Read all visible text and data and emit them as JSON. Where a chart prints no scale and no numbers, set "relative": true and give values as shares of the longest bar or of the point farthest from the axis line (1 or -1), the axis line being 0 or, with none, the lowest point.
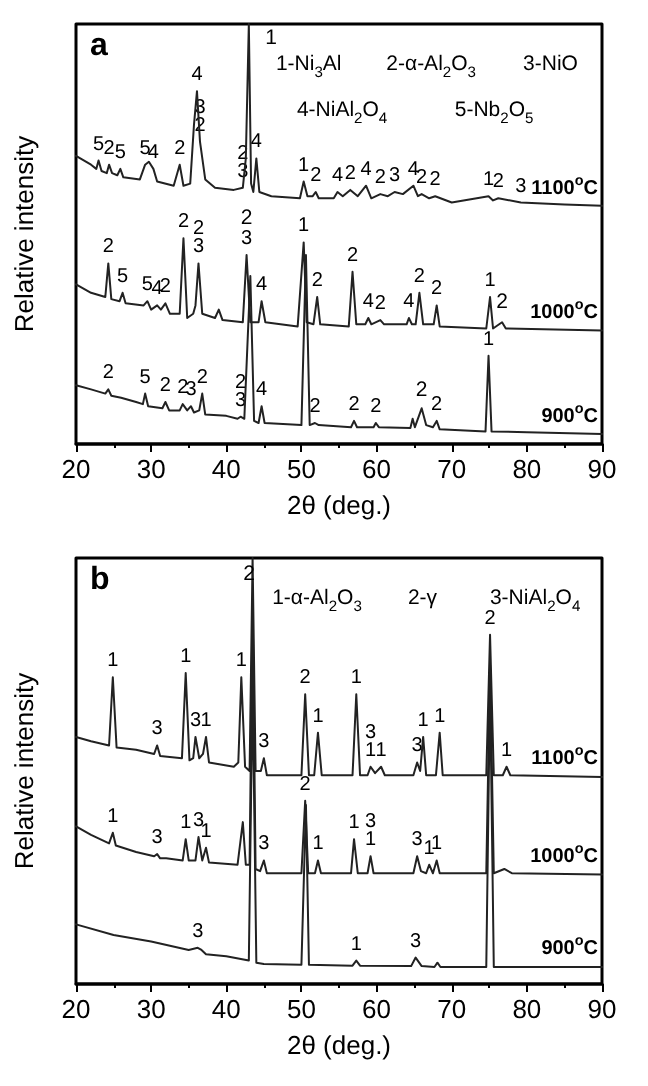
{
  "chart_data": [
    {
      "type": "line",
      "title": "a",
      "xlabel": "2θ (deg.)",
      "ylabel": "Relative intensity",
      "relative": true,
      "marker": "none",
      "xlim": [
        20,
        90
      ],
      "xticks": [
        20,
        30,
        40,
        50,
        60,
        70,
        80,
        90
      ],
      "series": [
        {
          "name": "1100$^{o}$C",
          "color": "#222222",
          "x": [
            20,
            22,
            22.7,
            23.0,
            23.4,
            24.1,
            24.4,
            24.8,
            25.5,
            25.9,
            26.3,
            28.5,
            29.2,
            29.7,
            30.3,
            30.8,
            33,
            33.8,
            34.3,
            35.2,
            35.7,
            36.1,
            36.5,
            37.2,
            38.5,
            41,
            42.2,
            42.6,
            43,
            43.3,
            43.6,
            44.0,
            44.4,
            46,
            49.8,
            50.3,
            50.8,
            51.5,
            51.9,
            52.3,
            54.3,
            54.8,
            55.5,
            56.5,
            57.5,
            58.6,
            59.3,
            60.5,
            61.5,
            62.4,
            63.5,
            64.9,
            65.5,
            66,
            67,
            67.8,
            70,
            74.9,
            75.5,
            76.2,
            79.2,
            85,
            90
          ],
          "values": [
            0.686,
            0.665,
            0.655,
            0.675,
            0.65,
            0.645,
            0.665,
            0.645,
            0.64,
            0.655,
            0.635,
            0.63,
            0.665,
            0.672,
            0.655,
            0.625,
            0.615,
            0.665,
            0.615,
            0.62,
            0.76,
            0.84,
            0.72,
            0.63,
            0.61,
            0.605,
            0.61,
            0.68,
            1,
            0.62,
            0.6,
            0.68,
            0.6,
            0.59,
            0.585,
            0.625,
            0.59,
            0.59,
            0.6,
            0.585,
            0.585,
            0.6,
            0.59,
            0.605,
            0.59,
            0.615,
            0.585,
            0.595,
            0.59,
            0.6,
            0.595,
            0.615,
            0.59,
            0.595,
            0.585,
            0.59,
            0.575,
            0.59,
            0.58,
            0.585,
            0.575,
            0.57,
            0.567
          ]
        },
        {
          "name": "1000$^{o}$C",
          "color": "#222222",
          "x": [
            20,
            22,
            23.9,
            24.3,
            24.7,
            25.8,
            26.2,
            26.6,
            29,
            29.5,
            30,
            30.8,
            31.3,
            31.9,
            32.5,
            33.8,
            34.3,
            34.8,
            35.6,
            35.9,
            36.3,
            36.8,
            38.5,
            39,
            39.5,
            42.2,
            42.7,
            43.2,
            44.3,
            44.7,
            45.2,
            49.5,
            50.3,
            50.7,
            51.6,
            52.1,
            52.5,
            56.3,
            56.8,
            57.3,
            58.5,
            58.9,
            59.3,
            60.5,
            61,
            64,
            64.3,
            64.7,
            65.2,
            65.7,
            66.2,
            67.6,
            68,
            68.4,
            74.6,
            75.1,
            75.5,
            76.7,
            77.2,
            90
          ],
          "values": [
            0.38,
            0.36,
            0.35,
            0.43,
            0.345,
            0.34,
            0.36,
            0.335,
            0.33,
            0.34,
            0.32,
            0.33,
            0.32,
            0.335,
            0.31,
            0.31,
            0.49,
            0.3,
            0.31,
            0.33,
            0.43,
            0.31,
            0.3,
            0.32,
            0.295,
            0.29,
            0.45,
            0.29,
            0.29,
            0.34,
            0.29,
            0.28,
            0.48,
            0.29,
            0.285,
            0.35,
            0.285,
            0.28,
            0.41,
            0.285,
            0.285,
            0.3,
            0.285,
            0.295,
            0.285,
            0.285,
            0.3,
            0.285,
            0.285,
            0.36,
            0.285,
            0.285,
            0.33,
            0.28,
            0.275,
            0.35,
            0.275,
            0.29,
            0.275,
            0.27
          ]
        },
        {
          "name": "900$^{o}$C",
          "color": "#222222",
          "x": [
            20,
            22,
            23.9,
            24.3,
            24.7,
            26,
            28,
            28.9,
            29.2,
            29.6,
            31.5,
            31.9,
            32.4,
            33.8,
            34.2,
            34.8,
            35.3,
            35.7,
            36.4,
            36.8,
            37.2,
            40,
            41.5,
            41.9,
            42.4,
            43.2,
            43.7,
            44.3,
            44.7,
            45.1,
            50,
            50.6,
            51.1,
            51.8,
            52.3,
            56.6,
            57,
            57.4,
            59.6,
            59.9,
            60.3,
            64.5,
            64.8,
            65.1,
            66.0,
            66.6,
            67.5,
            68.0,
            68.4,
            74.5,
            74.9,
            75.3,
            80,
            90
          ],
          "values": [
            0.14,
            0.13,
            0.12,
            0.13,
            0.115,
            0.11,
            0.1,
            0.095,
            0.12,
            0.09,
            0.085,
            0.1,
            0.08,
            0.08,
            0.095,
            0.08,
            0.09,
            0.075,
            0.08,
            0.12,
            0.07,
            0.067,
            0.06,
            0.065,
            0.06,
            0.4,
            0.055,
            0.05,
            0.09,
            0.05,
            0.045,
            0.45,
            0.045,
            0.05,
            0.045,
            0.04,
            0.055,
            0.04,
            0.04,
            0.05,
            0.04,
            0.038,
            0.06,
            0.04,
            0.085,
            0.045,
            0.04,
            0.055,
            0.035,
            0.03,
            0.21,
            0.03,
            0.028,
            0.024
          ]
        }
      ],
      "annotations": [
        "1-Ni$_{3}$Al",
        "2-α-Al$_{2}$O$_{3}$",
        "3-NiO",
        "4-NiAl$_{2}$O$_{4}$",
        "5-Nb$_{2}$O$_{5}$",
        "1",
        "2",
        "2",
        "2",
        {
          "text": "5",
          "x": 23.0,
          "y": 0.675
        },
        {
          "text": "2",
          "x": 24.4,
          "y": 0.665
        },
        {
          "text": "5",
          "x": 25.9,
          "y": 0.655
        },
        {
          "text": "5",
          "x": 29.2,
          "y": 0.665
        },
        {
          "text": "4",
          "x": 30.3,
          "y": 0.655
        },
        {
          "text": "2",
          "x": 33.8,
          "y": 0.665
        },
        {
          "text": "4",
          "x": 36.1,
          "y": 0.84
        },
        {
          "text": "3",
          "x": 36.5,
          "y": 0.72
        },
        {
          "text": "2",
          "x": 36.5,
          "y": 0.72
        },
        {
          "text": "2",
          "x": 42.2,
          "y": 0.61
        },
        {
          "text": "3",
          "x": 42.2,
          "y": 0.61
        },
        {
          "text": "4",
          "x": 44.0,
          "y": 0.68
        },
        {
          "text": "1",
          "x": 50.3,
          "y": 0.625
        },
        {
          "text": "2",
          "x": 51.9,
          "y": 0.6
        },
        {
          "text": "4",
          "x": 54.8,
          "y": 0.6
        },
        {
          "text": "2",
          "x": 56.5,
          "y": 0.605
        },
        {
          "text": "4",
          "x": 58.6,
          "y": 0.615
        },
        {
          "text": "2",
          "x": 60.5,
          "y": 0.595
        },
        {
          "text": "3",
          "x": 62.4,
          "y": 0.6
        },
        {
          "text": "4",
          "x": 64.9,
          "y": 0.615
        },
        {
          "text": "2",
          "x": 66,
          "y": 0.595
        },
        {
          "text": "2",
          "x": 67.8,
          "y": 0.59
        },
        {
          "text": "1",
          "x": 74.9,
          "y": 0.59
        },
        {
          "text": "2",
          "x": 76.2,
          "y": 0.585
        },
        {
          "text": "3",
          "x": 79.2,
          "y": 0.575
        },
        {
          "text": "2",
          "x": 24.3,
          "y": 0.43
        },
        {
          "text": "5",
          "x": 26.2,
          "y": 0.36
        },
        {
          "text": "5",
          "x": 29.5,
          "y": 0.34
        },
        {
          "text": "4",
          "x": 30.8,
          "y": 0.33
        },
        {
          "text": "2",
          "x": 31.9,
          "y": 0.335
        },
        {
          "text": "2",
          "x": 34.3,
          "y": 0.49
        },
        {
          "text": "2",
          "x": 36.3,
          "y": 0.43
        },
        {
          "text": "3",
          "x": 36.3,
          "y": 0.43
        },
        {
          "text": "3",
          "x": 42.7,
          "y": 0.45
        },
        {
          "text": "4",
          "x": 44.7,
          "y": 0.34
        },
        {
          "text": "1",
          "x": 50.3,
          "y": 0.48
        },
        {
          "text": "2",
          "x": 52.1,
          "y": 0.35
        },
        {
          "text": "2",
          "x": 56.8,
          "y": 0.41
        },
        {
          "text": "4",
          "x": 58.9,
          "y": 0.3
        },
        {
          "text": "2",
          "x": 60.5,
          "y": 0.295
        },
        {
          "text": "4",
          "x": 64.3,
          "y": 0.3
        },
        {
          "text": "2",
          "x": 65.7,
          "y": 0.36
        },
        {
          "text": "2",
          "x": 68,
          "y": 0.33
        },
        {
          "text": "1",
          "x": 75.1,
          "y": 0.35
        },
        {
          "text": "2",
          "x": 24.3,
          "y": 0.13
        },
        {
          "text": "5",
          "x": 29.2,
          "y": 0.12
        },
        {
          "text": "2",
          "x": 31.9,
          "y": 0.1
        },
        {
          "text": "2",
          "x": 34.2,
          "y": 0.095
        },
        {
          "text": "3",
          "x": 35.3,
          "y": 0.09
        },
        {
          "text": "2",
          "x": 36.8,
          "y": 0.12
        },
        {
          "text": "2",
          "x": 41.9,
          "y": 0.065
        },
        {
          "text": "3",
          "x": 41.9,
          "y": 0.065
        },
        {
          "text": "4",
          "x": 44.7,
          "y": 0.09
        },
        {
          "text": "2",
          "x": 51.8,
          "y": 0.05
        },
        {
          "text": "2",
          "x": 57,
          "y": 0.055
        },
        {
          "text": "2",
          "x": 59.9,
          "y": 0.05
        },
        {
          "text": "2",
          "x": 68.0,
          "y": 0.055
        },
        {
          "text": "1",
          "x": 74.9,
          "y": 0.21
        }
      ]
    },
    {
      "type": "line",
      "title": "b",
      "xlabel": "2θ (deg.)",
      "ylabel": "Relative intensity",
      "relative": true,
      "marker": "none",
      "xlim": [
        20,
        90
      ],
      "xticks": [
        20,
        30,
        40,
        50,
        60,
        70,
        80,
        90
      ],
      "series": [
        {
          "name": "1100$^{o}$C",
          "color": "#222222",
          "x": [
            20,
            22,
            24.4,
            24.9,
            25.4,
            28,
            30.4,
            30.8,
            31.2,
            34.1,
            34.6,
            35.1,
            35.6,
            35.9,
            36.4,
            36.9,
            37.3,
            37.7,
            41,
            41.6,
            42.0,
            42.5,
            43.1,
            43.5,
            43.9,
            44.6,
            45.0,
            45.4,
            50,
            50.5,
            51,
            51.7,
            52.2,
            52.7,
            56.8,
            57.3,
            57.8,
            58.8,
            59.2,
            59.8,
            60.6,
            61.1,
            64.9,
            65.4,
            65.8,
            66.2,
            66.6,
            67.9,
            68.4,
            68.8,
            74.6,
            75.1,
            75.6,
            76.8,
            77.3,
            77.8,
            90
          ],
          "values": [
            0.58,
            0.57,
            0.56,
            0.72,
            0.555,
            0.55,
            0.54,
            0.56,
            0.535,
            0.53,
            0.73,
            0.525,
            0.53,
            0.58,
            0.53,
            0.54,
            0.58,
            0.52,
            0.51,
            0.52,
            0.72,
            0.51,
            0.5,
            1,
            0.5,
            0.5,
            0.53,
            0.49,
            0.49,
            0.68,
            0.49,
            0.49,
            0.59,
            0.49,
            0.49,
            0.68,
            0.49,
            0.49,
            0.51,
            0.495,
            0.51,
            0.49,
            0.49,
            0.52,
            0.5,
            0.58,
            0.49,
            0.49,
            0.59,
            0.49,
            0.49,
            0.82,
            0.49,
            0.49,
            0.51,
            0.49,
            0.486
          ]
        },
        {
          "name": "1000$^{o}$C",
          "color": "#222222",
          "x": [
            20,
            22,
            24.4,
            24.9,
            25.3,
            28,
            30.4,
            30.8,
            31.2,
            32,
            34.2,
            34.6,
            35,
            35.9,
            36.3,
            36.8,
            37.3,
            37.7,
            41.5,
            42.2,
            42.6,
            43.1,
            43.5,
            43.9,
            44.5,
            45.0,
            45.4,
            50,
            50.5,
            50.9,
            51.8,
            52.2,
            52.6,
            56.6,
            57,
            57.5,
            58.8,
            59.2,
            59.6,
            64.9,
            65.4,
            65.9,
            66.6,
            67,
            67.5,
            68,
            68.4,
            74.6,
            75.1,
            75.6,
            77,
            78,
            90
          ],
          "values": [
            0.37,
            0.35,
            0.33,
            0.355,
            0.325,
            0.31,
            0.3,
            0.305,
            0.295,
            0.295,
            0.29,
            0.34,
            0.29,
            0.29,
            0.345,
            0.29,
            0.32,
            0.285,
            0.28,
            0.38,
            0.28,
            0.28,
            0.9,
            0.27,
            0.265,
            0.29,
            0.26,
            0.26,
            0.43,
            0.26,
            0.26,
            0.29,
            0.26,
            0.26,
            0.34,
            0.26,
            0.26,
            0.3,
            0.26,
            0.26,
            0.3,
            0.265,
            0.26,
            0.28,
            0.26,
            0.29,
            0.26,
            0.26,
            0.75,
            0.26,
            0.27,
            0.26,
            0.257
          ]
        },
        {
          "name": "900$^{o}$C",
          "color": "#222222",
          "x": [
            20,
            25,
            30,
            35,
            36.2,
            36.7,
            37.3,
            40,
            43,
            43.5,
            44,
            45,
            50,
            50.6,
            51,
            56.8,
            57.3,
            57.8,
            64.6,
            65.2,
            66,
            67.7,
            68.1,
            68.5,
            74.6,
            75.1,
            75.6,
            80,
            90
          ],
          "values": [
            0.14,
            0.115,
            0.1,
            0.08,
            0.085,
            0.08,
            0.07,
            0.065,
            0.055,
            0.7,
            0.05,
            0.047,
            0.045,
            0.42,
            0.045,
            0.043,
            0.055,
            0.043,
            0.042,
            0.062,
            0.042,
            0.04,
            0.05,
            0.04,
            0.04,
            0.7,
            0.04,
            0.04,
            0.04
          ]
        }
      ],
      "annotations": [
        "1-α-Al$_{2}$O$_{3}$",
        "2-γ",
        "3-NiAl$_{2}$O$_{4}$",
        "2",
        {
          "text": "1",
          "x": 24.9,
          "y": 0.72
        },
        {
          "text": "3",
          "x": 30.8,
          "y": 0.56
        },
        {
          "text": "1",
          "x": 34.6,
          "y": 0.73
        },
        {
          "text": "3",
          "x": 35.9,
          "y": 0.58
        },
        {
          "text": "1",
          "x": 37.3,
          "y": 0.58
        },
        {
          "text": "1",
          "x": 42.0,
          "y": 0.72
        },
        {
          "text": "3",
          "x": 45.0,
          "y": 0.53
        },
        {
          "text": "2",
          "x": 50.5,
          "y": 0.68
        },
        {
          "text": "1",
          "x": 52.2,
          "y": 0.59
        },
        {
          "text": "1",
          "x": 57.3,
          "y": 0.68
        },
        {
          "text": "3",
          "x": 59.2,
          "y": 0.51
        },
        {
          "text": "1",
          "x": 59.2,
          "y": 0.51
        },
        {
          "text": "1",
          "x": 60.6,
          "y": 0.51
        },
        {
          "text": "3",
          "x": 65.4,
          "y": 0.52
        },
        {
          "text": "1",
          "x": 66.2,
          "y": 0.58
        },
        {
          "text": "1",
          "x": 68.4,
          "y": 0.59
        },
        {
          "text": "2",
          "x": 75.1,
          "y": 0.82
        },
        {
          "text": "1",
          "x": 77.3,
          "y": 0.51
        },
        {
          "text": "1",
          "x": 24.9,
          "y": 0.355
        },
        {
          "text": "3",
          "x": 30.8,
          "y": 0.305
        },
        {
          "text": "1",
          "x": 34.6,
          "y": 0.34
        },
        {
          "text": "3",
          "x": 36.3,
          "y": 0.345
        },
        {
          "text": "1",
          "x": 37.3,
          "y": 0.32
        },
        {
          "text": "3",
          "x": 45.0,
          "y": 0.29
        },
        {
          "text": "2",
          "x": 50.5,
          "y": 0.43
        },
        {
          "text": "1",
          "x": 52.2,
          "y": 0.29
        },
        {
          "text": "1",
          "x": 57,
          "y": 0.34
        },
        {
          "text": "3",
          "x": 59.2,
          "y": 0.3
        },
        {
          "text": "1",
          "x": 59.2,
          "y": 0.3
        },
        {
          "text": "3",
          "x": 65.4,
          "y": 0.3
        },
        {
          "text": "1",
          "x": 67,
          "y": 0.28
        },
        {
          "text": "1",
          "x": 68,
          "y": 0.29
        },
        {
          "text": "3",
          "x": 36.2,
          "y": 0.085
        },
        {
          "text": "1",
          "x": 57.3,
          "y": 0.055
        },
        {
          "text": "3",
          "x": 65.2,
          "y": 0.062
        }
      ]
    }
  ]
}
